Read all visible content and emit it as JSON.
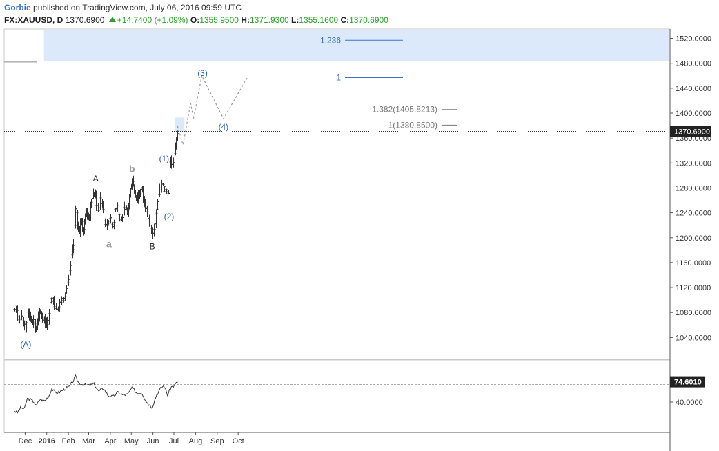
{
  "header": {
    "author": "Gorbie",
    "published": "published on TradingView.com, July 06, 2016 09:59 UTC",
    "symbol": "FX:XAUUSD, D",
    "last": "1370.6900",
    "change": "+14.7400 (+1.09%)",
    "o_label": "O:",
    "o_value": "1355.9500",
    "h_label": "H:",
    "h_value": "1371.9300",
    "l_label": "L:",
    "l_value": "1355.1600",
    "c_label": "C:",
    "c_value": "1370.6900"
  },
  "colors": {
    "price_bars": "#333333",
    "wave_labels_blue": "#2f5fa8",
    "wave_labels_grey": "#9a9a9a",
    "fib_zone": "#dce9fb",
    "projection": "#999999",
    "green": "#2e9e2e"
  },
  "chart_data": [
    {
      "type": "bar",
      "subtype": "ohlc",
      "symbol": "FX:XAUUSD",
      "x_ticks": [
        "Dec",
        "2016",
        "Feb",
        "Mar",
        "Apr",
        "May",
        "Jun",
        "Jul",
        "Aug",
        "Sep",
        "Oct"
      ],
      "y_ticks": [
        "1520.0000",
        "1480.0000",
        "1440.0000",
        "1400.0000",
        "1360.0000",
        "1320.0000",
        "1280.0000",
        "1240.0000",
        "1200.0000",
        "1160.0000",
        "1120.0000",
        "1080.0000",
        "1040.0000"
      ],
      "ylim": [
        1005,
        1535
      ],
      "last_price_label": "1370.6900",
      "price_path": [
        [
          "2015-11-16",
          1085
        ],
        [
          "2015-11-19",
          1078
        ],
        [
          "2015-11-23",
          1071
        ],
        [
          "2015-11-26",
          1069
        ],
        [
          "2015-11-30",
          1064
        ],
        [
          "2015-12-02",
          1053
        ],
        [
          "2015-12-04",
          1083
        ],
        [
          "2015-12-07",
          1074
        ],
        [
          "2015-12-10",
          1072
        ],
        [
          "2015-12-14",
          1064
        ],
        [
          "2015-12-16",
          1049
        ],
        [
          "2015-12-18",
          1065
        ],
        [
          "2015-12-22",
          1077
        ],
        [
          "2015-12-28",
          1069
        ],
        [
          "2015-12-31",
          1061
        ],
        [
          "2016-01-04",
          1075
        ],
        [
          "2016-01-07",
          1108
        ],
        [
          "2016-01-11",
          1095
        ],
        [
          "2016-01-14",
          1089
        ],
        [
          "2016-01-18",
          1089
        ],
        [
          "2016-01-21",
          1098
        ],
        [
          "2016-01-25",
          1108
        ],
        [
          "2016-01-28",
          1114
        ],
        [
          "2016-02-01",
          1127
        ],
        [
          "2016-02-04",
          1156
        ],
        [
          "2016-02-08",
          1190
        ],
        [
          "2016-02-11",
          1244
        ],
        [
          "2016-02-12",
          1238
        ],
        [
          "2016-02-16",
          1208
        ],
        [
          "2016-02-18",
          1233
        ],
        [
          "2016-02-22",
          1209
        ],
        [
          "2016-02-25",
          1239
        ],
        [
          "2016-02-29",
          1235
        ],
        [
          "2016-03-02",
          1243
        ],
        [
          "2016-03-04",
          1261
        ],
        [
          "2016-03-07",
          1267
        ],
        [
          "2016-03-10",
          1272
        ],
        [
          "2016-03-11",
          1258
        ],
        [
          "2016-03-14",
          1238
        ],
        [
          "2016-03-17",
          1263
        ],
        [
          "2016-03-21",
          1245
        ],
        [
          "2016-03-24",
          1220
        ],
        [
          "2016-03-28",
          1222
        ],
        [
          "2016-03-31",
          1233
        ],
        [
          "2016-04-04",
          1218
        ],
        [
          "2016-04-07",
          1240
        ],
        [
          "2016-04-11",
          1257
        ],
        [
          "2016-04-14",
          1227
        ],
        [
          "2016-04-18",
          1233
        ],
        [
          "2016-04-21",
          1252
        ],
        [
          "2016-04-25",
          1239
        ],
        [
          "2016-04-28",
          1266
        ],
        [
          "2016-05-02",
          1295
        ],
        [
          "2016-05-05",
          1275
        ],
        [
          "2016-05-09",
          1263
        ],
        [
          "2016-05-12",
          1270
        ],
        [
          "2016-05-16",
          1279
        ],
        [
          "2016-05-19",
          1255
        ],
        [
          "2016-05-23",
          1251
        ],
        [
          "2016-05-26",
          1220
        ],
        [
          "2016-05-30",
          1209
        ],
        [
          "2016-06-02",
          1210
        ],
        [
          "2016-06-06",
          1245
        ],
        [
          "2016-06-09",
          1268
        ],
        [
          "2016-06-13",
          1284
        ],
        [
          "2016-06-16",
          1280
        ],
        [
          "2016-06-20",
          1282
        ],
        [
          "2016-06-23",
          1263
        ],
        [
          "2016-06-24",
          1322
        ],
        [
          "2016-06-27",
          1320
        ],
        [
          "2016-06-30",
          1321
        ],
        [
          "2016-07-04",
          1353
        ],
        [
          "2016-07-06",
          1370.69
        ]
      ],
      "wave_labels": [
        {
          "text": "(A)",
          "date": "2015-12-02",
          "price": 1029,
          "color": "blue"
        },
        {
          "text": "A",
          "date": "2016-03-11",
          "price": 1295,
          "color": "dark"
        },
        {
          "text": "a",
          "date": "2016-03-30",
          "price": 1189,
          "color": "grey"
        },
        {
          "text": "b",
          "date": "2016-05-02",
          "price": 1310,
          "color": "grey"
        },
        {
          "text": "B",
          "date": "2016-05-31",
          "price": 1186,
          "color": "dark"
        },
        {
          "text": "(1)",
          "date": "2016-06-17",
          "price": 1327,
          "color": "blue"
        },
        {
          "text": "(2)",
          "date": "2016-06-24",
          "price": 1234,
          "color": "blue"
        },
        {
          "text": "(3)",
          "date": "2016-08-11",
          "price": 1464,
          "color": "blue"
        },
        {
          "text": "(4)",
          "date": "2016-09-10",
          "price": 1378,
          "color": "blue"
        }
      ],
      "fib_levels": [
        {
          "text": "1.236",
          "price": 1517,
          "color": "blue"
        },
        {
          "text": "1",
          "price": 1457,
          "color": "blue"
        },
        {
          "text": "-1.382(1405.8213)",
          "price": 1405.8213,
          "color": "grey"
        },
        {
          "text": "-1(1380.8500)",
          "price": 1380.85,
          "color": "grey"
        }
      ],
      "projection_path": [
        [
          "2016-07-06",
          1380
        ],
        [
          "2016-07-14",
          1349
        ],
        [
          "2016-07-25",
          1416
        ],
        [
          "2016-07-29",
          1391
        ],
        [
          "2016-08-10",
          1460
        ],
        [
          "2016-09-10",
          1391
        ],
        [
          "2016-10-14",
          1457
        ]
      ]
    },
    {
      "type": "line",
      "indicator": "oscillator",
      "y_ticks": [
        "40.0000"
      ],
      "last_value_label": "74.6010",
      "levels": [
        70,
        30
      ],
      "ylim": [
        0,
        100
      ],
      "values": [
        [
          "2015-11-16",
          25
        ],
        [
          "2015-11-20",
          22
        ],
        [
          "2015-11-25",
          31
        ],
        [
          "2015-11-30",
          28
        ],
        [
          "2015-12-04",
          46
        ],
        [
          "2015-12-09",
          44
        ],
        [
          "2015-12-14",
          40
        ],
        [
          "2015-12-17",
          33
        ],
        [
          "2015-12-22",
          45
        ],
        [
          "2015-12-29",
          42
        ],
        [
          "2016-01-05",
          52
        ],
        [
          "2016-01-08",
          64
        ],
        [
          "2016-01-13",
          56
        ],
        [
          "2016-01-19",
          57
        ],
        [
          "2016-01-26",
          62
        ],
        [
          "2016-02-02",
          66
        ],
        [
          "2016-02-08",
          76
        ],
        [
          "2016-02-11",
          84
        ],
        [
          "2016-02-16",
          72
        ],
        [
          "2016-02-22",
          70
        ],
        [
          "2016-03-01",
          68
        ],
        [
          "2016-03-09",
          71
        ],
        [
          "2016-03-15",
          58
        ],
        [
          "2016-03-22",
          64
        ],
        [
          "2016-03-29",
          51
        ],
        [
          "2016-04-05",
          49
        ],
        [
          "2016-04-12",
          57
        ],
        [
          "2016-04-19",
          52
        ],
        [
          "2016-04-26",
          53
        ],
        [
          "2016-05-02",
          65
        ],
        [
          "2016-05-09",
          55
        ],
        [
          "2016-05-16",
          56
        ],
        [
          "2016-05-23",
          40
        ],
        [
          "2016-05-31",
          31
        ],
        [
          "2016-06-06",
          52
        ],
        [
          "2016-06-13",
          65
        ],
        [
          "2016-06-17",
          68
        ],
        [
          "2016-06-22",
          52
        ],
        [
          "2016-06-27",
          66
        ],
        [
          "2016-07-01",
          67
        ],
        [
          "2016-07-06",
          74.6
        ]
      ]
    }
  ]
}
